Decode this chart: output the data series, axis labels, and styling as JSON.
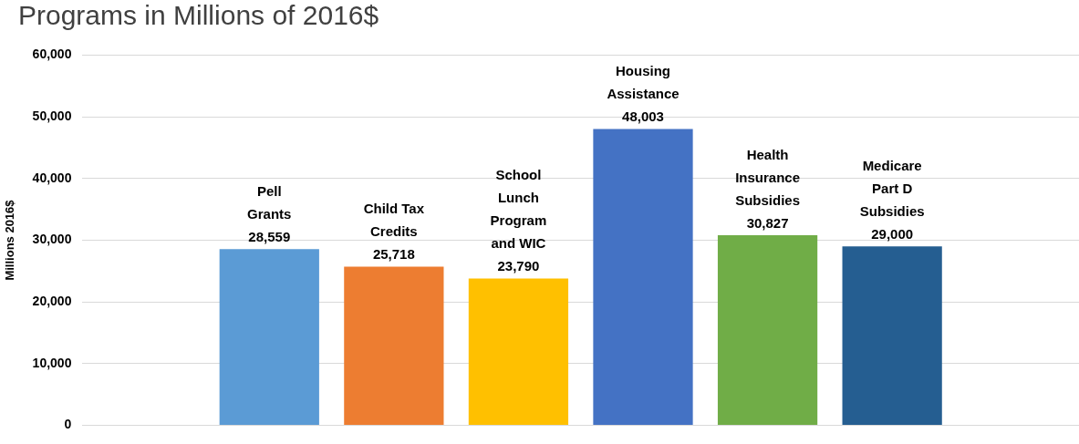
{
  "chart_data": {
    "type": "bar",
    "title": "Programs in Millions of 2016$",
    "ylabel": "Millions 2016$",
    "categories": [
      null,
      "Pell Grants",
      "Child Tax Credits",
      "School Lunch Program and WIC",
      "Housing Assistance",
      "Health Insurance Subsidies",
      "Medicare Part D Subsidies",
      null
    ],
    "values": [
      null,
      28559,
      25718,
      23790,
      48003,
      30827,
      29000,
      null
    ],
    "value_labels": [
      null,
      "28,559",
      "25,718",
      "23,790",
      "48,003",
      "30,827",
      "29,000",
      null
    ],
    "colors": [
      "#5b9bd5",
      "#5b9bd5",
      "#ed7d31",
      "#ffc000",
      "#4472c4",
      "#70ad47",
      "#255e91",
      "#255e91"
    ],
    "ylim": [
      0,
      60000
    ],
    "yticks": [
      {
        "value": 0,
        "label": "0"
      },
      {
        "value": 10000,
        "label": "10,000"
      },
      {
        "value": 20000,
        "label": "20,000"
      },
      {
        "value": 30000,
        "label": "30,000"
      },
      {
        "value": 40000,
        "label": "40,000"
      },
      {
        "value": 50000,
        "label": "50,000"
      },
      {
        "value": 60000,
        "label": "60,000"
      }
    ],
    "grid": "y",
    "legend": false
  }
}
